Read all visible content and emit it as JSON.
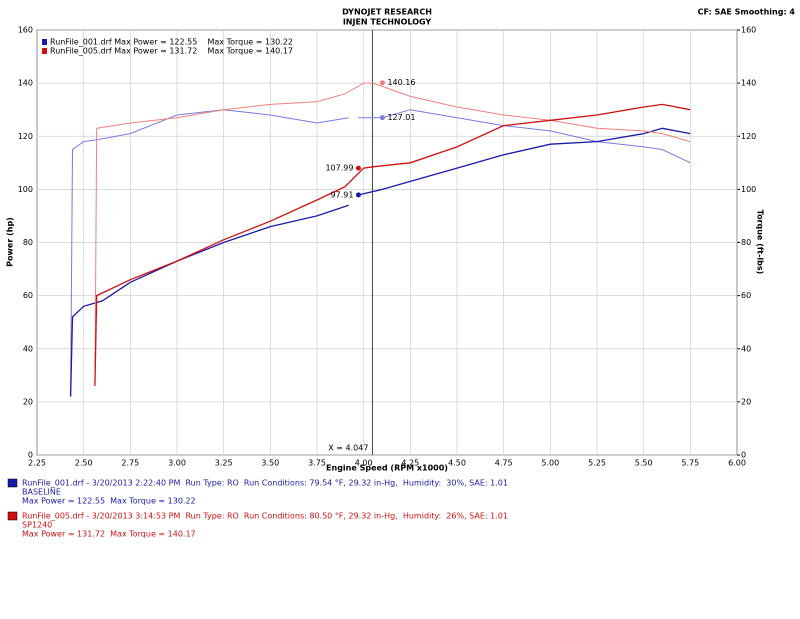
{
  "chart_data": {
    "type": "dyno",
    "title": "DYNOJET RESEARCH",
    "subtitle": "INJEN TECHNOLOGY",
    "settings_text": "CF: SAE  Smoothing: 4",
    "xlabel": "Engine Speed (RPM x1000)",
    "ylabel": "Power (hp)",
    "y2label": "Torque (ft-lbs)",
    "xlim": [
      2.25,
      6.0
    ],
    "xticks": [
      2.25,
      {
        "value": 2.5,
        "label": "2.50"
      },
      2.75,
      {
        "value": 3.0,
        "label": "3.00"
      },
      3.25,
      {
        "value": 3.5,
        "label": "3.50"
      },
      3.75,
      {
        "value": 4.0,
        "label": "4.00"
      },
      4.25,
      {
        "value": 4.5,
        "label": "4.50"
      },
      4.75,
      {
        "value": 5.0,
        "label": "5.00"
      },
      5.25,
      {
        "value": 5.5,
        "label": "5.50"
      },
      5.75,
      {
        "value": 6.0,
        "label": "6.00"
      }
    ],
    "ylim": [
      0,
      160
    ],
    "yticks": [
      0,
      20,
      40,
      60,
      80,
      100,
      120,
      140,
      160
    ],
    "y2lim": [
      0,
      160
    ],
    "y2ticks": [
      0,
      20,
      40,
      60,
      80,
      100,
      120,
      140,
      160
    ],
    "grid": true,
    "cursor": {
      "value": 4.047,
      "label": "X = 4.047"
    },
    "series": [
      {
        "name": "RunFile_001.drf Max Power = 122.55    Max Torque = 130.22",
        "color": "#1a1aa8",
        "torque_color": "#7a7ae0",
        "x": [
          2.43,
          2.44,
          2.5,
          2.6,
          2.75,
          3.0,
          3.25,
          3.5,
          3.75,
          3.92,
          3.94,
          3.97,
          4.1,
          4.25,
          4.5,
          4.75,
          5.0,
          5.25,
          5.5,
          5.6,
          5.75
        ],
        "power": [
          22,
          52,
          56,
          58,
          65,
          73,
          80,
          86,
          90,
          94,
          null,
          97.9,
          100,
          103,
          108,
          113,
          117,
          118,
          121,
          123,
          121
        ],
        "torque": [
          22,
          115,
          118,
          119,
          121,
          128,
          130,
          128,
          125,
          127,
          null,
          127,
          127,
          130,
          127,
          124,
          122,
          118,
          116,
          115,
          110
        ]
      },
      {
        "name": "RunFile_005.drf Max Power = 131.72    Max Torque = 140.17",
        "color": "#d01010",
        "torque_color": "#f08080",
        "x": [
          2.56,
          2.57,
          2.75,
          3.0,
          3.25,
          3.5,
          3.75,
          3.9,
          4.0,
          4.05,
          4.25,
          4.5,
          4.75,
          5.0,
          5.25,
          5.5,
          5.6,
          5.75
        ],
        "power": [
          26,
          60,
          66,
          73,
          81,
          88,
          96,
          101,
          108,
          108.5,
          110,
          116,
          124,
          126,
          128,
          131,
          132,
          130
        ],
        "torque": [
          26,
          123,
          125,
          127,
          130,
          132,
          133,
          136,
          140,
          140,
          135,
          131,
          128,
          126,
          123,
          122,
          121,
          118
        ]
      }
    ],
    "markers": [
      {
        "value": 140.16,
        "label": "140.16",
        "color": "#f08080"
      },
      {
        "value": 127.01,
        "label": "127.01",
        "color": "#7a7ae0"
      },
      {
        "value": 107.99,
        "label": "107.99",
        "color": "#d01010"
      },
      {
        "value": 97.91,
        "label": "97.91",
        "color": "#1a1aa8"
      }
    ]
  },
  "footer": [
    {
      "color": "#1a1aa8",
      "lines": [
        "RunFile_001.drf - 3/20/2013 2:22:40 PM  Run Type: RO  Run Conditions: 79.54 °F, 29.32 in-Hg,  Humidity:  30%, SAE: 1.01",
        "BASELINE",
        "Max Power = 122.55  Max Torque = 130.22"
      ]
    },
    {
      "color": "#d01010",
      "lines": [
        "RunFile_005.drf - 3/20/2013 3:14:53 PM  Run Type: RO  Run Conditions: 80.50 °F, 29.32 in-Hg,  Humidity:  26%, SAE: 1.01",
        "SP1240",
        "Max Power = 131.72  Max Torque = 140.17"
      ]
    }
  ]
}
